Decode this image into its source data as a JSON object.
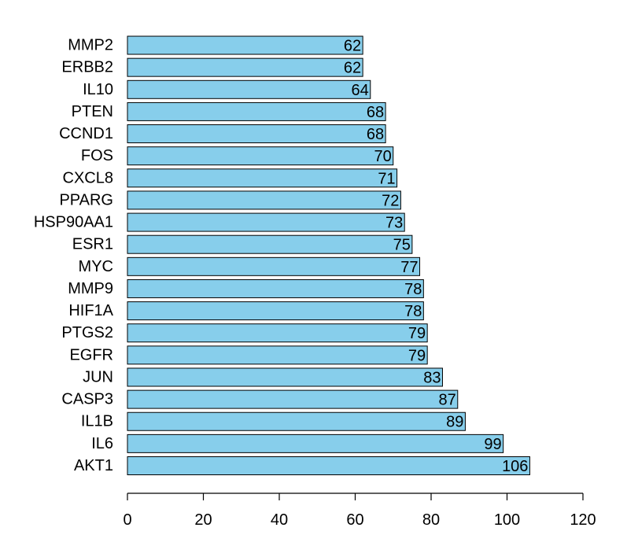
{
  "chart_data": {
    "type": "bar",
    "orientation": "horizontal",
    "categories": [
      "AKT1",
      "IL6",
      "IL1B",
      "CASP3",
      "JUN",
      "EGFR",
      "PTGS2",
      "HIF1A",
      "MMP9",
      "MYC",
      "ESR1",
      "HSP90AA1",
      "PPARG",
      "CXCL8",
      "FOS",
      "CCND1",
      "PTEN",
      "IL10",
      "ERBB2",
      "MMP2"
    ],
    "values": [
      106,
      99,
      89,
      87,
      83,
      79,
      79,
      78,
      78,
      77,
      75,
      73,
      72,
      71,
      70,
      68,
      68,
      64,
      62,
      62
    ],
    "xlim": [
      0,
      120
    ],
    "x_ticks": [
      0,
      20,
      40,
      60,
      80,
      100,
      120
    ],
    "bar_color": "#87CEEB",
    "grid": false,
    "title": "",
    "xlabel": "",
    "ylabel": ""
  }
}
